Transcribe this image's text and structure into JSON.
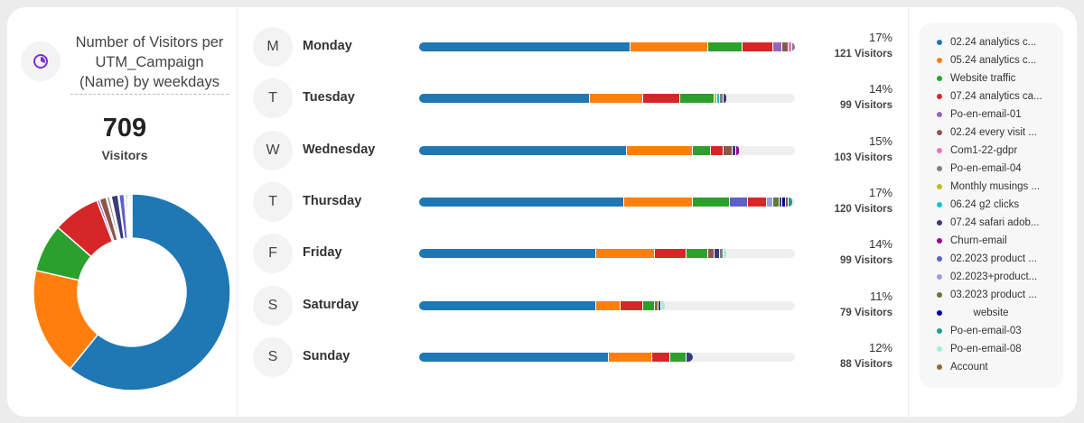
{
  "widget": {
    "title": "Number of Visitors per UTM_Campaign (Name) by weekdays",
    "icon": "pie-chart-icon",
    "accent": "#7b2fd0",
    "total": "709",
    "total_label": "Visitors"
  },
  "legend": [
    {
      "label": "02.24 analytics c...",
      "color": "#1f77b4"
    },
    {
      "label": "05.24 analytics c...",
      "color": "#ff7f0e"
    },
    {
      "label": "Website traffic",
      "color": "#2ca02c"
    },
    {
      "label": "07.24 analytics ca...",
      "color": "#d62728"
    },
    {
      "label": "Po-en-email-01",
      "color": "#9467bd"
    },
    {
      "label": "02.24 every visit ...",
      "color": "#8c564b"
    },
    {
      "label": "Com1-22-gdpr",
      "color": "#e377c2"
    },
    {
      "label": "Po-en-email-04",
      "color": "#7f7f7f"
    },
    {
      "label": "Monthly musings ...",
      "color": "#bcbd22"
    },
    {
      "label": "06.24 g2 clicks",
      "color": "#17becf"
    },
    {
      "label": "07.24 safari adob...",
      "color": "#393b79"
    },
    {
      "label": "Churn-email",
      "color": "#990099"
    },
    {
      "label": "02.2023 product ...",
      "color": "#6060c8"
    },
    {
      "label": "02.2023+product...",
      "color": "#9c9ce0"
    },
    {
      "label": "03.2023 product ...",
      "color": "#637939"
    },
    {
      "label": "        website",
      "color": "#0000a0"
    },
    {
      "label": "Po-en-email-03",
      "color": "#1f9e89"
    },
    {
      "label": "Po-en-email-08",
      "color": "#a6eed6"
    },
    {
      "label": "Account",
      "color": "#8c6d31"
    }
  ],
  "days": [
    {
      "initial": "M",
      "name": "Monday",
      "percent": "17%",
      "visitors": "121 Visitors",
      "total": 121,
      "segments": [
        [
          0,
          68
        ],
        [
          1,
          25
        ],
        [
          2,
          11
        ],
        [
          3,
          10
        ],
        [
          4,
          3
        ],
        [
          5,
          2
        ],
        [
          6,
          1
        ],
        [
          7,
          1
        ]
      ]
    },
    {
      "initial": "T",
      "name": "Tuesday",
      "percent": "14%",
      "visitors": "99 Visitors",
      "total": 99,
      "segments": [
        [
          0,
          55
        ],
        [
          1,
          17
        ],
        [
          3,
          12
        ],
        [
          2,
          11
        ],
        [
          8,
          1
        ],
        [
          9,
          1
        ],
        [
          7,
          1
        ],
        [
          10,
          1
        ]
      ]
    },
    {
      "initial": "W",
      "name": "Wednesday",
      "percent": "15%",
      "visitors": "103 Visitors",
      "total": 103,
      "segments": [
        [
          0,
          67
        ],
        [
          1,
          21
        ],
        [
          2,
          6
        ],
        [
          3,
          4
        ],
        [
          5,
          3
        ],
        [
          10,
          1
        ],
        [
          11,
          1
        ]
      ]
    },
    {
      "initial": "T",
      "name": "Thursday",
      "percent": "17%",
      "visitors": "120 Visitors",
      "total": 120,
      "segments": [
        [
          0,
          66
        ],
        [
          1,
          22
        ],
        [
          2,
          12
        ],
        [
          12,
          6
        ],
        [
          3,
          6
        ],
        [
          13,
          2
        ],
        [
          14,
          2
        ],
        [
          10,
          1
        ],
        [
          15,
          1
        ],
        [
          5,
          1
        ],
        [
          16,
          1
        ]
      ]
    },
    {
      "initial": "F",
      "name": "Friday",
      "percent": "14%",
      "visitors": "99 Visitors",
      "total": 99,
      "segments": [
        [
          0,
          57
        ],
        [
          1,
          19
        ],
        [
          3,
          10
        ],
        [
          2,
          7
        ],
        [
          5,
          2
        ],
        [
          10,
          2
        ],
        [
          7,
          1
        ],
        [
          17,
          1
        ]
      ]
    },
    {
      "initial": "S",
      "name": "Saturday",
      "percent": "11%",
      "visitors": "79 Visitors",
      "total": 79,
      "segments": [
        [
          0,
          57
        ],
        [
          1,
          8
        ],
        [
          3,
          7
        ],
        [
          2,
          4
        ],
        [
          18,
          1
        ],
        [
          10,
          1
        ],
        [
          17,
          1
        ]
      ]
    },
    {
      "initial": "S",
      "name": "Sunday",
      "percent": "12%",
      "visitors": "88 Visitors",
      "total": 88,
      "segments": [
        [
          0,
          61
        ],
        [
          1,
          14
        ],
        [
          3,
          6
        ],
        [
          2,
          5
        ],
        [
          10,
          2
        ]
      ]
    }
  ]
}
